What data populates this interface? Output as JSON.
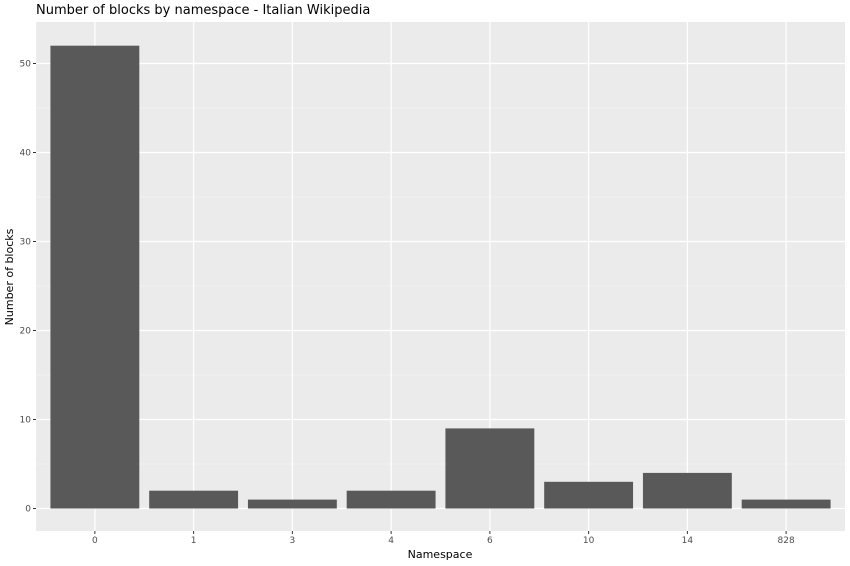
{
  "chart_data": {
    "type": "bar",
    "title": "Number of blocks by namespace - Italian Wikipedia",
    "xlabel": "Namespace",
    "ylabel": "Number of blocks",
    "categories": [
      "0",
      "1",
      "3",
      "4",
      "6",
      "10",
      "14",
      "828"
    ],
    "values": [
      52,
      2,
      1,
      2,
      9,
      3,
      4,
      1
    ],
    "ylim": [
      0,
      52
    ],
    "yticks": [
      0,
      10,
      20,
      30,
      40,
      50
    ],
    "grid": true,
    "legend": "none",
    "colors": {
      "panel": "#ebebeb",
      "bar": "#595959",
      "grid_major": "#ffffff"
    }
  }
}
